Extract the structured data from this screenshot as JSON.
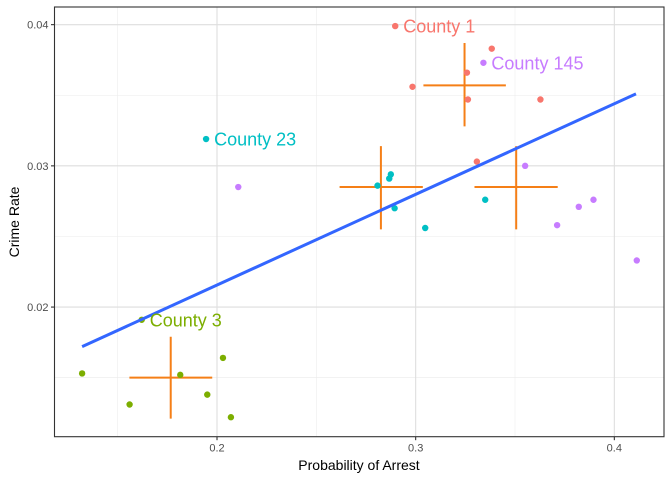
{
  "chart_data": {
    "type": "scatter",
    "title": "",
    "xlabel": "Probability of Arrest",
    "ylabel": "Crime Rate",
    "xlim": [
      0.1182,
      0.425
    ],
    "ylim": [
      0.01082,
      0.04125
    ],
    "grid": true,
    "legend": "none",
    "x_ticks": [
      {
        "value": 0.2,
        "label": "0.2"
      },
      {
        "value": 0.3,
        "label": "0.3"
      },
      {
        "value": 0.4,
        "label": "0.4"
      }
    ],
    "y_ticks": [
      {
        "value": 0.02,
        "label": "0.02"
      },
      {
        "value": 0.03,
        "label": "0.03"
      },
      {
        "value": 0.04,
        "label": "0.04"
      }
    ],
    "x_minor": [
      0.15,
      0.25,
      0.35
    ],
    "y_minor": [
      0.015,
      0.025,
      0.035
    ],
    "colors": {
      "red": "#F8766D",
      "green": "#7CAE00",
      "teal": "#00BFC4",
      "purple": "#C77CFF",
      "cross": "#F57F17",
      "fit": "#3366FF"
    },
    "series": [
      {
        "name": "group-red",
        "color": "#F8766D",
        "points": [
          {
            "x": 0.2897,
            "y": 0.0399,
            "label": "County 1"
          },
          {
            "x": 0.3383,
            "y": 0.0383
          },
          {
            "x": 0.3258,
            "y": 0.0366
          },
          {
            "x": 0.2984,
            "y": 0.0356
          },
          {
            "x": 0.3263,
            "y": 0.0347
          },
          {
            "x": 0.3628,
            "y": 0.0347
          },
          {
            "x": 0.3308,
            "y": 0.0303
          }
        ],
        "cross": {
          "x": 0.3246,
          "y": 0.0357,
          "x_range": [
            0.3039,
            0.3454
          ],
          "y_range": [
            0.0328,
            0.0387
          ]
        }
      },
      {
        "name": "group-purple",
        "color": "#C77CFF",
        "points": [
          {
            "x": 0.3341,
            "y": 0.0373,
            "label": "County 145"
          },
          {
            "x": 0.3551,
            "y": 0.03
          },
          {
            "x": 0.2107,
            "y": 0.0285
          },
          {
            "x": 0.3895,
            "y": 0.0276
          },
          {
            "x": 0.3821,
            "y": 0.0271
          },
          {
            "x": 0.3712,
            "y": 0.0258
          },
          {
            "x": 0.4113,
            "y": 0.0233
          }
        ],
        "cross": {
          "x": 0.3506,
          "y": 0.0285,
          "x_range": [
            0.3296,
            0.3715
          ],
          "y_range": [
            0.0255,
            0.0314
          ]
        }
      },
      {
        "name": "group-teal",
        "color": "#00BFC4",
        "points": [
          {
            "x": 0.1945,
            "y": 0.0319,
            "label": "County 23"
          },
          {
            "x": 0.2875,
            "y": 0.0294
          },
          {
            "x": 0.2867,
            "y": 0.0291
          },
          {
            "x": 0.2808,
            "y": 0.0286
          },
          {
            "x": 0.335,
            "y": 0.0276
          },
          {
            "x": 0.2894,
            "y": 0.027
          },
          {
            "x": 0.3048,
            "y": 0.0256
          }
        ],
        "cross": {
          "x": 0.2825,
          "y": 0.0285,
          "x_range": [
            0.2617,
            0.3036
          ],
          "y_range": [
            0.0255,
            0.0314
          ]
        }
      },
      {
        "name": "group-green",
        "color": "#7CAE00",
        "points": [
          {
            "x": 0.1621,
            "y": 0.0191,
            "label": "County 3"
          },
          {
            "x": 0.203,
            "y": 0.0164
          },
          {
            "x": 0.1321,
            "y": 0.0153
          },
          {
            "x": 0.1815,
            "y": 0.0152
          },
          {
            "x": 0.1951,
            "y": 0.0138
          },
          {
            "x": 0.156,
            "y": 0.0131
          },
          {
            "x": 0.207,
            "y": 0.0122
          }
        ],
        "cross": {
          "x": 0.1767,
          "y": 0.015,
          "x_range": [
            0.1559,
            0.1976
          ],
          "y_range": [
            0.0121,
            0.0179
          ]
        }
      }
    ],
    "fit_line": {
      "x": [
        0.1321,
        0.4109
      ],
      "y": [
        0.0172,
        0.0351
      ]
    }
  }
}
